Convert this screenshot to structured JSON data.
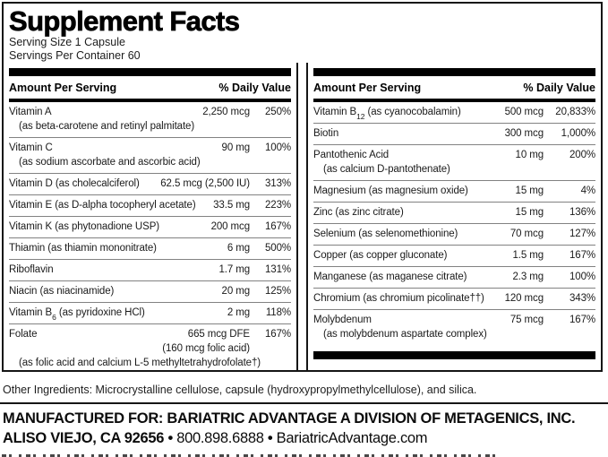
{
  "label": {
    "title": "Supplement Facts",
    "serving_size": "Serving Size 1 Capsule",
    "servings_per_container": "Servings Per Container 60",
    "column_headers": {
      "amount": "Amount Per Serving",
      "daily_value": "% Daily Value"
    },
    "left_column": {
      "rows": [
        {
          "name": "Vitamin A",
          "amount": "2,250 mcg",
          "dv": "250%",
          "note": "(as beta-carotene and retinyl palmitate)"
        },
        {
          "name": "Vitamin C",
          "amount": "90 mg",
          "dv": "100%",
          "note": "(as sodium ascorbate and ascorbic acid)"
        },
        {
          "name": "Vitamin D (as cholecalciferol)",
          "amount": "62.5 mcg (2,500 IU)",
          "dv": "313%"
        },
        {
          "name": "Vitamin E (as D-alpha tocopheryl acetate)",
          "amount": "33.5 mg",
          "dv": "223%"
        },
        {
          "name": "Vitamin K (as phytonadione USP)",
          "amount": "200 mcg",
          "dv": "167%"
        },
        {
          "name": "Thiamin (as thiamin mononitrate)",
          "amount": "6 mg",
          "dv": "500%"
        },
        {
          "name": "Riboflavin",
          "amount": "1.7 mg",
          "dv": "131%"
        },
        {
          "name": "Niacin (as niacinamide)",
          "amount": "20 mg",
          "dv": "125%"
        },
        {
          "name": "Vitamin B",
          "name_sub": "6",
          "name_post": " (as pyridoxine HCl)",
          "amount": "2 mg",
          "dv": "118%"
        },
        {
          "name": "Folate",
          "amount": "665 mcg DFE",
          "dv": "167%",
          "amount_note": "(160 mcg folic acid)",
          "note": "(as folic acid and calcium L-5 methyltetrahydrofolate†)"
        }
      ]
    },
    "right_column": {
      "rows": [
        {
          "name": "Vitamin B",
          "name_sub": "12",
          "name_post": " (as cyanocobalamin)",
          "amount": "500 mcg",
          "dv": "20,833%"
        },
        {
          "name": "Biotin",
          "amount": "300 mcg",
          "dv": "1,000%"
        },
        {
          "name": "Pantothenic Acid",
          "amount": "10 mg",
          "dv": "200%",
          "note": "(as calcium D-pantothenate)"
        },
        {
          "name": "Magnesium (as magnesium oxide)",
          "amount": "15 mg",
          "dv": "4%"
        },
        {
          "name": "Zinc (as zinc citrate)",
          "amount": "15 mg",
          "dv": "136%"
        },
        {
          "name": "Selenium (as selenomethionine)",
          "amount": "70 mcg",
          "dv": "127%"
        },
        {
          "name": "Copper (as copper gluconate)",
          "amount": "1.5 mg",
          "dv": "167%"
        },
        {
          "name": "Manganese (as maganese citrate)",
          "amount": "2.3 mg",
          "dv": "100%"
        },
        {
          "name": "Chromium (as chromium picolinate††)",
          "amount": "120 mcg",
          "dv": "343%"
        },
        {
          "name": "Molybdenum",
          "amount": "75 mcg",
          "dv": "167%",
          "note": "(as molybdenum aspartate complex)"
        }
      ]
    }
  },
  "footer": {
    "other_ingredients": "Other Ingredients: Microcrystalline cellulose, capsule (hydroxypropylmethylcellulose), and silica.",
    "manufactured_for": "MANUFACTURED FOR: BARIATRIC ADVANTAGE A DIVISION OF METAGENICS, INC.",
    "address": "ALISO VIEJO, CA 92656",
    "bullet": "•",
    "phone": "800.898.6888",
    "website": "BariatricAdvantage.com"
  },
  "colors": {
    "text": "#111111",
    "bars": "#000000",
    "separator": "#828282",
    "background": "#ffffff"
  }
}
